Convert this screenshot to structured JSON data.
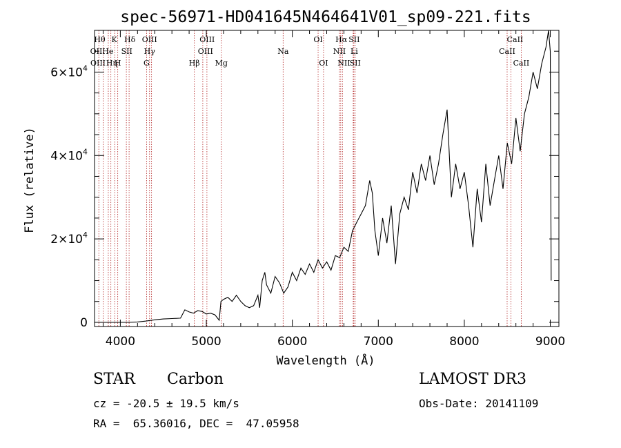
{
  "chart_data": {
    "type": "line",
    "title": "spec-56971-HD041645N464641V01_sp09-221.fits",
    "xlabel": "Wavelength (Å)",
    "ylabel": "Flux (relative)",
    "xlim": [
      3700,
      9100
    ],
    "ylim": [
      -1000,
      70000
    ],
    "x_ticks": [
      4000,
      5000,
      6000,
      7000,
      8000,
      9000
    ],
    "x_tick_labels": [
      "4000",
      "5000",
      "6000",
      "7000",
      "8000",
      "9000"
    ],
    "y_ticks": [
      0,
      20000,
      40000,
      60000
    ],
    "y_tick_labels": [
      {
        "mant": "0",
        "exp": ""
      },
      {
        "mant": "2×10",
        "exp": "4"
      },
      {
        "mant": "4×10",
        "exp": "4"
      },
      {
        "mant": "6×10",
        "exp": "4"
      }
    ],
    "series": [
      {
        "name": "spectrum",
        "x": [
          3700,
          3800,
          3900,
          4000,
          4100,
          4200,
          4300,
          4400,
          4500,
          4600,
          4700,
          4750,
          4800,
          4850,
          4900,
          4950,
          5000,
          5050,
          5100,
          5150,
          5170,
          5200,
          5250,
          5300,
          5350,
          5400,
          5450,
          5500,
          5550,
          5600,
          5620,
          5650,
          5680,
          5700,
          5750,
          5800,
          5850,
          5900,
          5950,
          6000,
          6050,
          6100,
          6150,
          6200,
          6250,
          6300,
          6350,
          6400,
          6450,
          6500,
          6550,
          6600,
          6650,
          6700,
          6750,
          6800,
          6850,
          6900,
          6930,
          6960,
          7000,
          7050,
          7100,
          7150,
          7200,
          7250,
          7300,
          7350,
          7400,
          7450,
          7500,
          7550,
          7600,
          7650,
          7700,
          7750,
          7800,
          7850,
          7900,
          7950,
          8000,
          8050,
          8100,
          8150,
          8200,
          8250,
          8300,
          8350,
          8400,
          8450,
          8500,
          8550,
          8600,
          8650,
          8700,
          8750,
          8800,
          8850,
          8900,
          8950,
          8980,
          9000,
          9010
        ],
        "y": [
          0,
          0,
          0,
          0,
          0,
          100,
          300,
          600,
          800,
          900,
          1000,
          3000,
          2500,
          2200,
          2800,
          2600,
          2000,
          2200,
          1800,
          500,
          5000,
          5500,
          6000,
          5000,
          6500,
          5000,
          4000,
          3500,
          4000,
          6500,
          3500,
          10000,
          12000,
          9000,
          7000,
          11000,
          9500,
          7000,
          8500,
          12000,
          10000,
          13000,
          11500,
          14000,
          12000,
          15000,
          13000,
          14500,
          12500,
          16000,
          15500,
          18000,
          17000,
          22000,
          24000,
          26000,
          28000,
          34000,
          31000,
          22000,
          16000,
          25000,
          19000,
          28000,
          14000,
          26000,
          30000,
          27000,
          36000,
          31000,
          38000,
          34000,
          40000,
          33000,
          38000,
          45000,
          51000,
          30000,
          38000,
          32000,
          36000,
          28000,
          18000,
          32000,
          24000,
          38000,
          28000,
          34000,
          40000,
          32000,
          43000,
          38000,
          49000,
          41000,
          50000,
          54000,
          60000,
          56000,
          62000,
          66000,
          70000,
          65000,
          10000
        ]
      }
    ],
    "lines": [
      {
        "w": 3750,
        "labels": [
          "Hθ",
          "OII"
        ]
      },
      {
        "w": 3800,
        "labels": [
          "Hη"
        ]
      },
      {
        "w": 3860,
        "labels": [
          "He"
        ]
      },
      {
        "w": 3890,
        "labels": [
          "Hη"
        ]
      },
      {
        "w": 3935,
        "labels": [
          "K"
        ]
      },
      {
        "w": 3970,
        "labels": [
          "H"
        ]
      },
      {
        "w": 4070,
        "labels": [
          "SII"
        ]
      },
      {
        "w": 4102,
        "labels": [
          "Hδ"
        ]
      },
      {
        "w": 4305,
        "labels": [
          "G"
        ]
      },
      {
        "w": 4340,
        "labels": [
          "Hγ"
        ]
      },
      {
        "w": 4363,
        "labels": [
          "OIII"
        ]
      },
      {
        "w": 4861,
        "labels": [
          "Hβ"
        ]
      },
      {
        "w": 4959,
        "labels": [
          "OIII"
        ]
      },
      {
        "w": 5007,
        "labels": [
          "OIII"
        ]
      },
      {
        "w": 5175,
        "labels": [
          "Mg"
        ]
      },
      {
        "w": 5893,
        "labels": [
          "Na"
        ]
      },
      {
        "w": 6300,
        "labels": [
          "OI"
        ]
      },
      {
        "w": 6363,
        "labels": [
          "OI"
        ]
      },
      {
        "w": 6548,
        "labels": [
          "NII"
        ]
      },
      {
        "w": 6563,
        "labels": [
          "Hα"
        ]
      },
      {
        "w": 6583,
        "labels": [
          "NII"
        ]
      },
      {
        "w": 6708,
        "labels": [
          "Li"
        ]
      },
      {
        "w": 6716,
        "labels": [
          "SII"
        ]
      },
      {
        "w": 6731,
        "labels": [
          "SII"
        ]
      },
      {
        "w": 8498,
        "labels": [
          "CaII"
        ]
      },
      {
        "w": 8542,
        "labels": [
          "CaII"
        ]
      },
      {
        "w": 8662,
        "labels": [
          "CaII"
        ]
      }
    ],
    "line_label_rows": [
      [
        "Hθ",
        "K",
        "Hδ",
        "OIII",
        "OIII",
        "OI",
        "Hα",
        "SII",
        "CaII"
      ],
      [
        "OII",
        "He",
        "SII",
        "Hγ",
        "OIII",
        "Na",
        "NII",
        "Li",
        "CaII"
      ],
      [
        "OIII",
        "Hη",
        "H",
        "G",
        "Hβ",
        "Mg",
        "OI",
        "NII",
        "SII",
        "CaII"
      ]
    ],
    "colors": {
      "spectrum": "#000000",
      "lines": "#b22222",
      "axes": "#000000"
    }
  },
  "info": {
    "class_label": "STAR",
    "subclass_label": "Carbon",
    "survey": "LAMOST DR3",
    "cz": "cz = -20.5 ± 19.5 km/s",
    "obs_date": "Obs-Date: 20141109",
    "coords": "RA =  65.36016, DEC =  47.05958"
  }
}
